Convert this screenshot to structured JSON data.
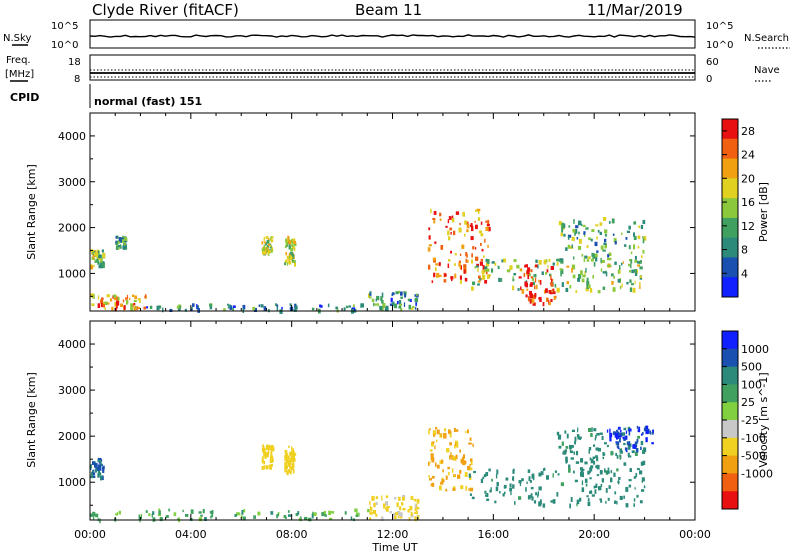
{
  "header": {
    "station": "Clyde River (fitACF)",
    "beam": "Beam 11",
    "date": "11/Mar/2019"
  },
  "top_panels": {
    "nsky_label": "N.Sky",
    "nsearch_label": "N.Search",
    "noise_ticks": [
      "10^5",
      "10^0"
    ],
    "freq_label_line1": "Freq.",
    "freq_label_line2": "[MHz]",
    "freq_ticks": [
      "18",
      "8"
    ],
    "nave_label": "Nave",
    "nave_ticks": [
      "60",
      "0"
    ],
    "cpid_label": "CPID",
    "cpid_value": "normal (fast) 151"
  },
  "chart_data": [
    {
      "type": "heatmap",
      "panel": "power",
      "ylabel": "Slant Range [km]",
      "xlabel": "Time UT",
      "x_ticks": [
        "00:00",
        "04:00",
        "08:00",
        "12:00",
        "16:00",
        "20:00",
        "00:00"
      ],
      "x_range_hours": [
        0,
        24
      ],
      "y_ticks": [
        1000,
        2000,
        3000,
        4000
      ],
      "ylim": [
        180,
        4500
      ],
      "colorbar": {
        "label": "Power [dB]",
        "ticks": [
          4,
          8,
          12,
          16,
          20,
          24,
          28
        ],
        "range": [
          0,
          30
        ],
        "colors": [
          "#1020ff",
          "#1a50b0",
          "#2b8a7a",
          "#3fa060",
          "#8cc83c",
          "#e0d020",
          "#f0a010",
          "#f06010",
          "#e81010"
        ]
      },
      "echo_regions": [
        {
          "t0": 0.0,
          "t1": 0.5,
          "r0": 1100,
          "r1": 1500,
          "value": 14
        },
        {
          "t0": 0.0,
          "t1": 2.2,
          "r0": 200,
          "r1": 550,
          "value": 22
        },
        {
          "t0": 1.0,
          "t1": 1.4,
          "r0": 1550,
          "r1": 1800,
          "value": 10
        },
        {
          "t0": 2.2,
          "t1": 11.0,
          "r0": 180,
          "r1": 320,
          "value": 8
        },
        {
          "t0": 6.8,
          "t1": 7.2,
          "r0": 1450,
          "r1": 1800,
          "value": 14
        },
        {
          "t0": 7.7,
          "t1": 8.1,
          "r0": 1200,
          "r1": 1800,
          "value": 16
        },
        {
          "t0": 11.0,
          "t1": 13.0,
          "r0": 200,
          "r1": 600,
          "value": 10
        },
        {
          "t0": 13.4,
          "t1": 15.8,
          "r0": 800,
          "r1": 2400,
          "value": 24
        },
        {
          "t0": 15.0,
          "t1": 22.0,
          "r0": 600,
          "r1": 1300,
          "value": 14
        },
        {
          "t0": 17.0,
          "t1": 18.4,
          "r0": 300,
          "r1": 1200,
          "value": 28
        },
        {
          "t0": 18.5,
          "t1": 22.0,
          "r0": 1200,
          "r1": 2200,
          "value": 12
        }
      ]
    },
    {
      "type": "heatmap",
      "panel": "velocity",
      "ylabel": "Slant Range [km]",
      "xlabel": "Time UT",
      "x_ticks": [
        "00:00",
        "04:00",
        "08:00",
        "12:00",
        "16:00",
        "20:00",
        "00:00"
      ],
      "x_range_hours": [
        0,
        24
      ],
      "y_ticks": [
        1000,
        2000,
        3000,
        4000
      ],
      "ylim": [
        180,
        4500
      ],
      "colorbar": {
        "label": "Velocity [m s^-1]",
        "ticks": [
          "1000",
          "500",
          "100",
          "25",
          "-25",
          "-100",
          "-500",
          "-1000"
        ],
        "colors": [
          "#1020ff",
          "#1a50b0",
          "#2b8a7a",
          "#3fa060",
          "#80d040",
          "#c8c8c8",
          "#f0d020",
          "#f0a010",
          "#f06010",
          "#e81010"
        ]
      },
      "echo_regions": [
        {
          "t0": 0.0,
          "t1": 0.5,
          "r0": 1100,
          "r1": 1500,
          "value": 500
        },
        {
          "t0": 0.0,
          "t1": 11.0,
          "r0": 180,
          "r1": 400,
          "value": 50
        },
        {
          "t0": 6.8,
          "t1": 7.2,
          "r0": 1300,
          "r1": 1800,
          "value": -300
        },
        {
          "t0": 7.7,
          "t1": 8.1,
          "r0": 1200,
          "r1": 1800,
          "value": -300
        },
        {
          "t0": 11.0,
          "t1": 13.0,
          "r0": 200,
          "r1": 700,
          "value": -150
        },
        {
          "t0": 13.4,
          "t1": 15.2,
          "r0": 800,
          "r1": 2200,
          "value": -600
        },
        {
          "t0": 15.0,
          "t1": 22.0,
          "r0": 500,
          "r1": 1300,
          "value": 200
        },
        {
          "t0": 18.5,
          "t1": 22.0,
          "r0": 1200,
          "r1": 2200,
          "value": 150
        },
        {
          "t0": 20.5,
          "t1": 22.3,
          "r0": 1700,
          "r1": 2200,
          "value": 900
        }
      ]
    }
  ]
}
